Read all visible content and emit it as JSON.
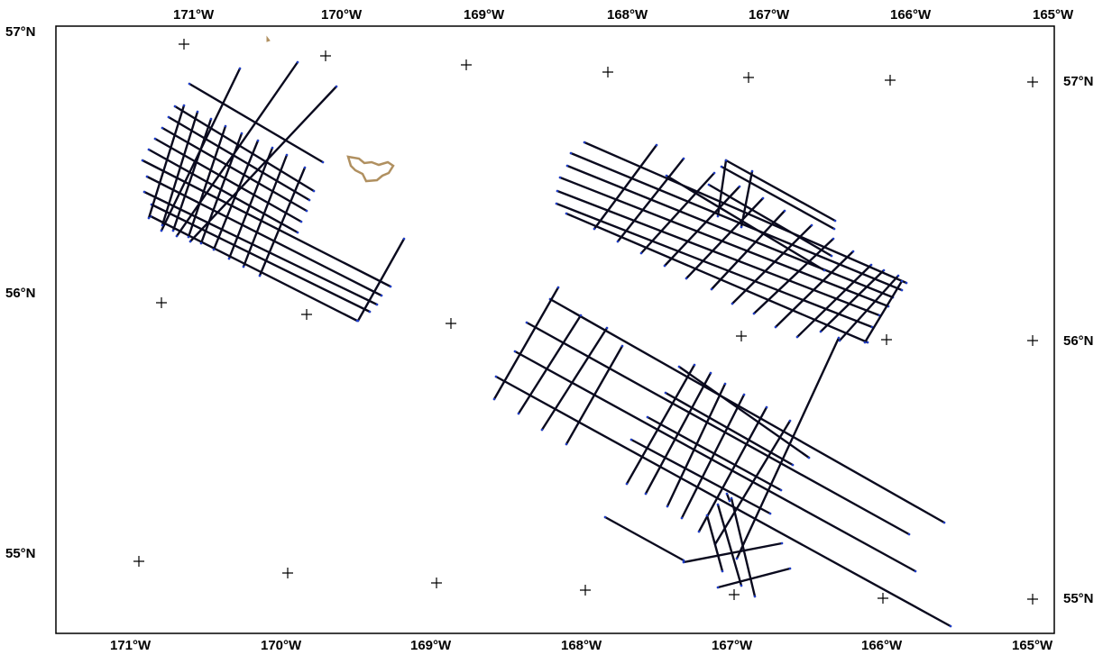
{
  "map": {
    "colors": {
      "frame": "#000000",
      "track": "#0a0a1e",
      "track_end": "#1e3cc8",
      "coast": "#b09060"
    },
    "top_labels": [
      "171°W",
      "170°W",
      "169°W",
      "168°W",
      "167°W",
      "166°W",
      "165°W"
    ],
    "bottom_labels": [
      "171°W",
      "170°W",
      "169°W",
      "168°W",
      "167°W",
      "166°W",
      "165°W"
    ],
    "left_labels": [
      "57°N",
      "56°N",
      "55°N"
    ],
    "right_labels": [
      "57°N",
      "56°N",
      "55°N"
    ],
    "graticule_marker": "+",
    "features": [
      "island",
      "survey-tracklines-northwest",
      "survey-tracklines-east",
      "survey-tracklines-south"
    ]
  }
}
